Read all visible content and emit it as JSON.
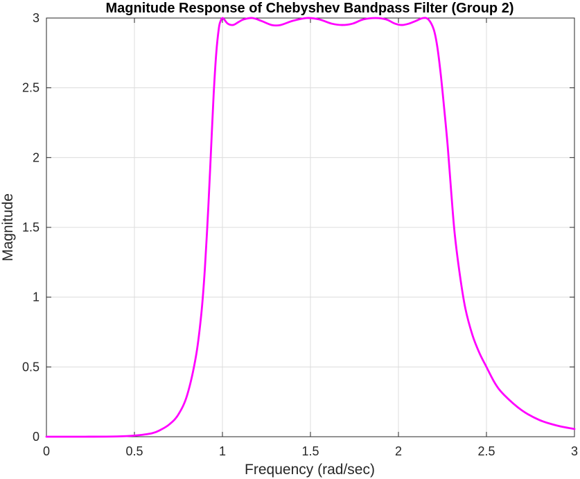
{
  "chart_data": {
    "type": "line",
    "title": "Magnitude Response of Chebyshev Bandpass Filter (Group 2)",
    "xlabel": "Frequency (rad/sec)",
    "ylabel": "Magnitude",
    "xlim": [
      0,
      3
    ],
    "ylim": [
      0,
      3
    ],
    "xticks": [
      0,
      0.5,
      1,
      1.5,
      2,
      2.5,
      3
    ],
    "xtick_labels": [
      "0",
      "0.5",
      "1",
      "1.5",
      "2",
      "2.5",
      "3"
    ],
    "yticks": [
      0,
      0.5,
      1,
      1.5,
      2,
      2.5,
      3
    ],
    "ytick_labels": [
      "0",
      "0.5",
      "1",
      "1.5",
      "2",
      "2.5",
      "3"
    ],
    "grid": true,
    "line_color": "#ff00ff",
    "series": [
      {
        "x": [
          0,
          0.2,
          0.4,
          0.5,
          0.6,
          0.65,
          0.7,
          0.75,
          0.8,
          0.85,
          0.88,
          0.9,
          0.92,
          0.935,
          0.95,
          0.965,
          0.98,
          0.99,
          1.0,
          1.01,
          1.03,
          1.06,
          1.09,
          1.12,
          1.17,
          1.22,
          1.28,
          1.33,
          1.4,
          1.48,
          1.55,
          1.62,
          1.68,
          1.74,
          1.8,
          1.87,
          1.93,
          1.98,
          2.02,
          2.06,
          2.1,
          2.14,
          2.17,
          2.2,
          2.22,
          2.24,
          2.26,
          2.28,
          2.3,
          2.32,
          2.35,
          2.38,
          2.42,
          2.46,
          2.5,
          2.55,
          2.6,
          2.7,
          2.8,
          2.9,
          3.0
        ],
        "y": [
          0.0,
          0.0,
          0.002,
          0.008,
          0.025,
          0.05,
          0.09,
          0.16,
          0.3,
          0.58,
          0.88,
          1.2,
          1.65,
          2.05,
          2.45,
          2.75,
          2.93,
          2.98,
          3.0,
          2.99,
          2.96,
          2.95,
          2.97,
          2.99,
          3.0,
          2.98,
          2.95,
          2.95,
          2.98,
          3.0,
          2.99,
          2.96,
          2.95,
          2.96,
          2.99,
          3.0,
          2.99,
          2.96,
          2.95,
          2.96,
          2.98,
          3.0,
          2.99,
          2.92,
          2.8,
          2.6,
          2.35,
          2.08,
          1.75,
          1.45,
          1.15,
          0.92,
          0.73,
          0.6,
          0.5,
          0.38,
          0.3,
          0.19,
          0.12,
          0.08,
          0.055
        ]
      }
    ]
  }
}
